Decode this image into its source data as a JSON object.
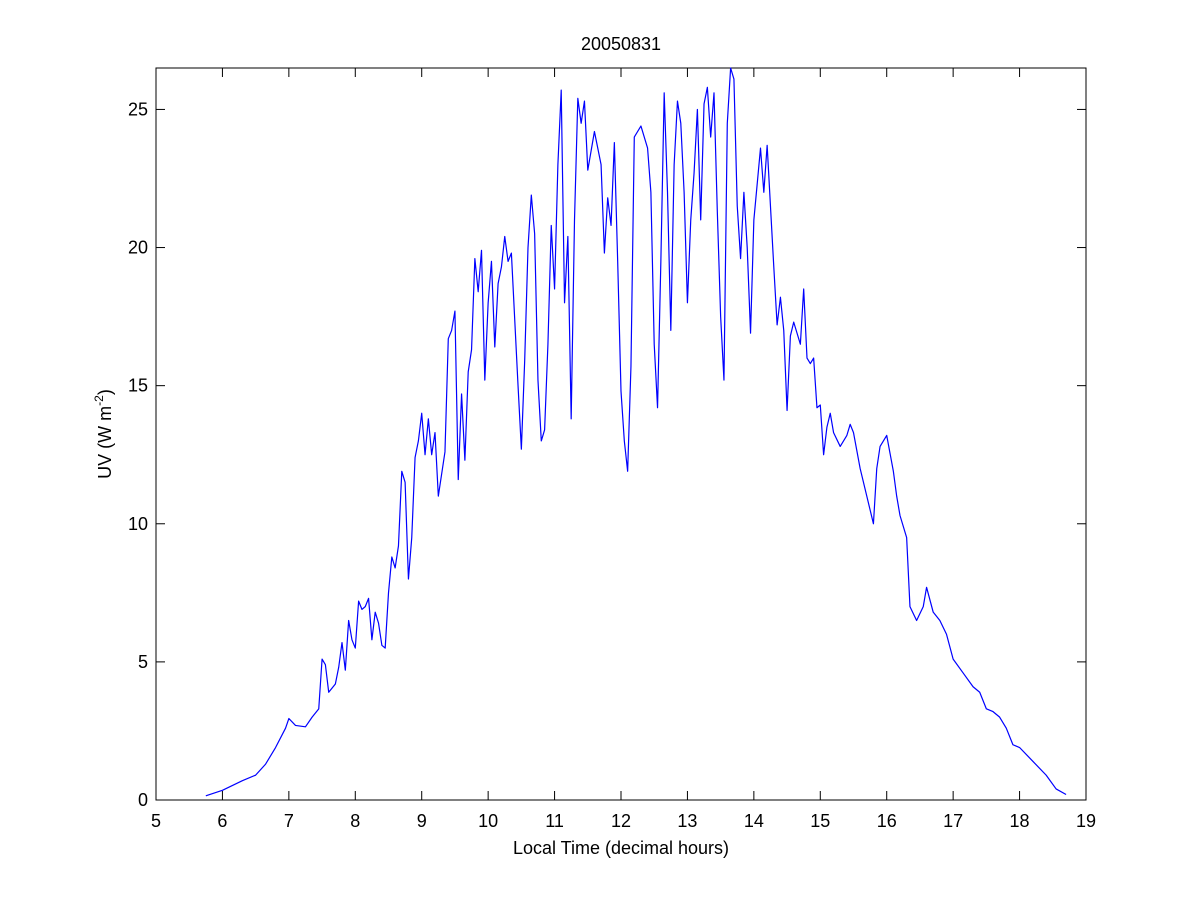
{
  "chart_data": {
    "type": "line",
    "title": "20050831",
    "xlabel": "Local Time (decimal hours)",
    "ylabel": [
      "UV (W m",
      "-2",
      ")"
    ],
    "color": "#0000ff",
    "xlim": [
      5,
      19
    ],
    "xticks": [
      5,
      6,
      7,
      8,
      9,
      10,
      11,
      12,
      13,
      14,
      15,
      16,
      17,
      18,
      19
    ],
    "ylim": [
      0,
      26.5
    ],
    "yticks": [
      0,
      5,
      10,
      15,
      20,
      25
    ],
    "x": [
      5.75,
      6.0,
      6.3,
      6.5,
      6.65,
      6.8,
      6.95,
      7.0,
      7.1,
      7.25,
      7.35,
      7.45,
      7.5,
      7.55,
      7.6,
      7.7,
      7.75,
      7.8,
      7.85,
      7.9,
      7.95,
      8.0,
      8.05,
      8.1,
      8.15,
      8.2,
      8.25,
      8.3,
      8.35,
      8.4,
      8.45,
      8.5,
      8.55,
      8.6,
      8.65,
      8.7,
      8.75,
      8.8,
      8.85,
      8.9,
      8.95,
      9.0,
      9.05,
      9.1,
      9.15,
      9.2,
      9.25,
      9.3,
      9.35,
      9.4,
      9.45,
      9.5,
      9.55,
      9.6,
      9.65,
      9.7,
      9.75,
      9.8,
      9.85,
      9.9,
      9.95,
      10.0,
      10.05,
      10.1,
      10.15,
      10.2,
      10.25,
      10.3,
      10.35,
      10.45,
      10.5,
      10.55,
      10.6,
      10.65,
      10.7,
      10.75,
      10.8,
      10.85,
      10.9,
      10.95,
      11.0,
      11.05,
      11.1,
      11.15,
      11.2,
      11.25,
      11.3,
      11.35,
      11.4,
      11.45,
      11.5,
      11.6,
      11.7,
      11.75,
      11.8,
      11.85,
      11.9,
      11.95,
      12.0,
      12.05,
      12.1,
      12.15,
      12.2,
      12.3,
      12.4,
      12.45,
      12.5,
      12.55,
      12.6,
      12.65,
      12.7,
      12.75,
      12.8,
      12.85,
      12.9,
      12.95,
      13.0,
      13.05,
      13.1,
      13.15,
      13.2,
      13.25,
      13.3,
      13.35,
      13.4,
      13.45,
      13.5,
      13.55,
      13.6,
      13.65,
      13.7,
      13.75,
      13.8,
      13.85,
      13.9,
      13.95,
      14.0,
      14.05,
      14.1,
      14.15,
      14.2,
      14.3,
      14.35,
      14.4,
      14.45,
      14.5,
      14.55,
      14.6,
      14.7,
      14.75,
      14.8,
      14.85,
      14.9,
      14.95,
      15.0,
      15.05,
      15.1,
      15.15,
      15.2,
      15.3,
      15.4,
      15.45,
      15.5,
      15.6,
      15.7,
      15.8,
      15.85,
      15.9,
      16.0,
      16.1,
      16.15,
      16.2,
      16.3,
      16.35,
      16.45,
      16.55,
      16.6,
      16.7,
      16.8,
      16.9,
      17.0,
      17.15,
      17.3,
      17.4,
      17.5,
      17.6,
      17.7,
      17.8,
      17.9,
      18.0,
      18.2,
      18.4,
      18.55,
      18.7
    ],
    "values": [
      0.15,
      0.35,
      0.7,
      0.9,
      1.3,
      1.9,
      2.6,
      2.95,
      2.7,
      2.65,
      3.0,
      3.3,
      5.1,
      4.9,
      3.9,
      4.2,
      4.8,
      5.7,
      4.7,
      6.5,
      5.8,
      5.5,
      7.2,
      6.9,
      7.0,
      7.3,
      5.8,
      6.8,
      6.4,
      5.6,
      5.5,
      7.5,
      8.8,
      8.4,
      9.2,
      11.9,
      11.5,
      8.0,
      9.5,
      12.4,
      13.0,
      14.0,
      12.5,
      13.8,
      12.5,
      13.3,
      11.0,
      11.8,
      12.6,
      16.7,
      17.0,
      17.7,
      11.6,
      14.7,
      12.3,
      15.5,
      16.3,
      19.6,
      18.4,
      19.9,
      15.2,
      18.0,
      19.5,
      16.4,
      18.7,
      19.3,
      20.4,
      19.5,
      19.8,
      15.0,
      12.7,
      15.9,
      20.0,
      21.9,
      20.5,
      15.2,
      13.0,
      13.4,
      16.5,
      20.8,
      18.5,
      23.0,
      25.7,
      18.0,
      20.4,
      13.8,
      21.0,
      25.4,
      24.5,
      25.3,
      22.8,
      24.2,
      23.0,
      19.8,
      21.8,
      20.8,
      23.8,
      19.5,
      14.8,
      13.0,
      11.9,
      15.7,
      24.0,
      24.4,
      23.6,
      22.0,
      16.5,
      14.2,
      19.5,
      25.6,
      22.0,
      17.0,
      23.0,
      25.3,
      24.5,
      22.0,
      18.0,
      21.0,
      22.7,
      25.0,
      21.0,
      25.2,
      25.8,
      24.0,
      25.6,
      21.3,
      17.5,
      15.2,
      24.5,
      26.5,
      26.1,
      21.5,
      19.6,
      22.0,
      20.0,
      16.9,
      21.0,
      22.3,
      23.6,
      22.0,
      23.7,
      19.3,
      17.2,
      18.2,
      17.0,
      14.1,
      16.8,
      17.3,
      16.5,
      18.5,
      16.0,
      15.8,
      16.0,
      14.2,
      14.3,
      12.5,
      13.5,
      14.0,
      13.3,
      12.8,
      13.2,
      13.6,
      13.3,
      12.0,
      11.0,
      10.0,
      12.0,
      12.8,
      13.2,
      11.9,
      11.0,
      10.3,
      9.5,
      7.0,
      6.5,
      7.0,
      7.7,
      6.8,
      6.5,
      6.0,
      5.1,
      4.6,
      4.1,
      3.9,
      3.3,
      3.2,
      3.0,
      2.6,
      2.0,
      1.9,
      1.4,
      0.9,
      0.4,
      0.2
    ]
  }
}
